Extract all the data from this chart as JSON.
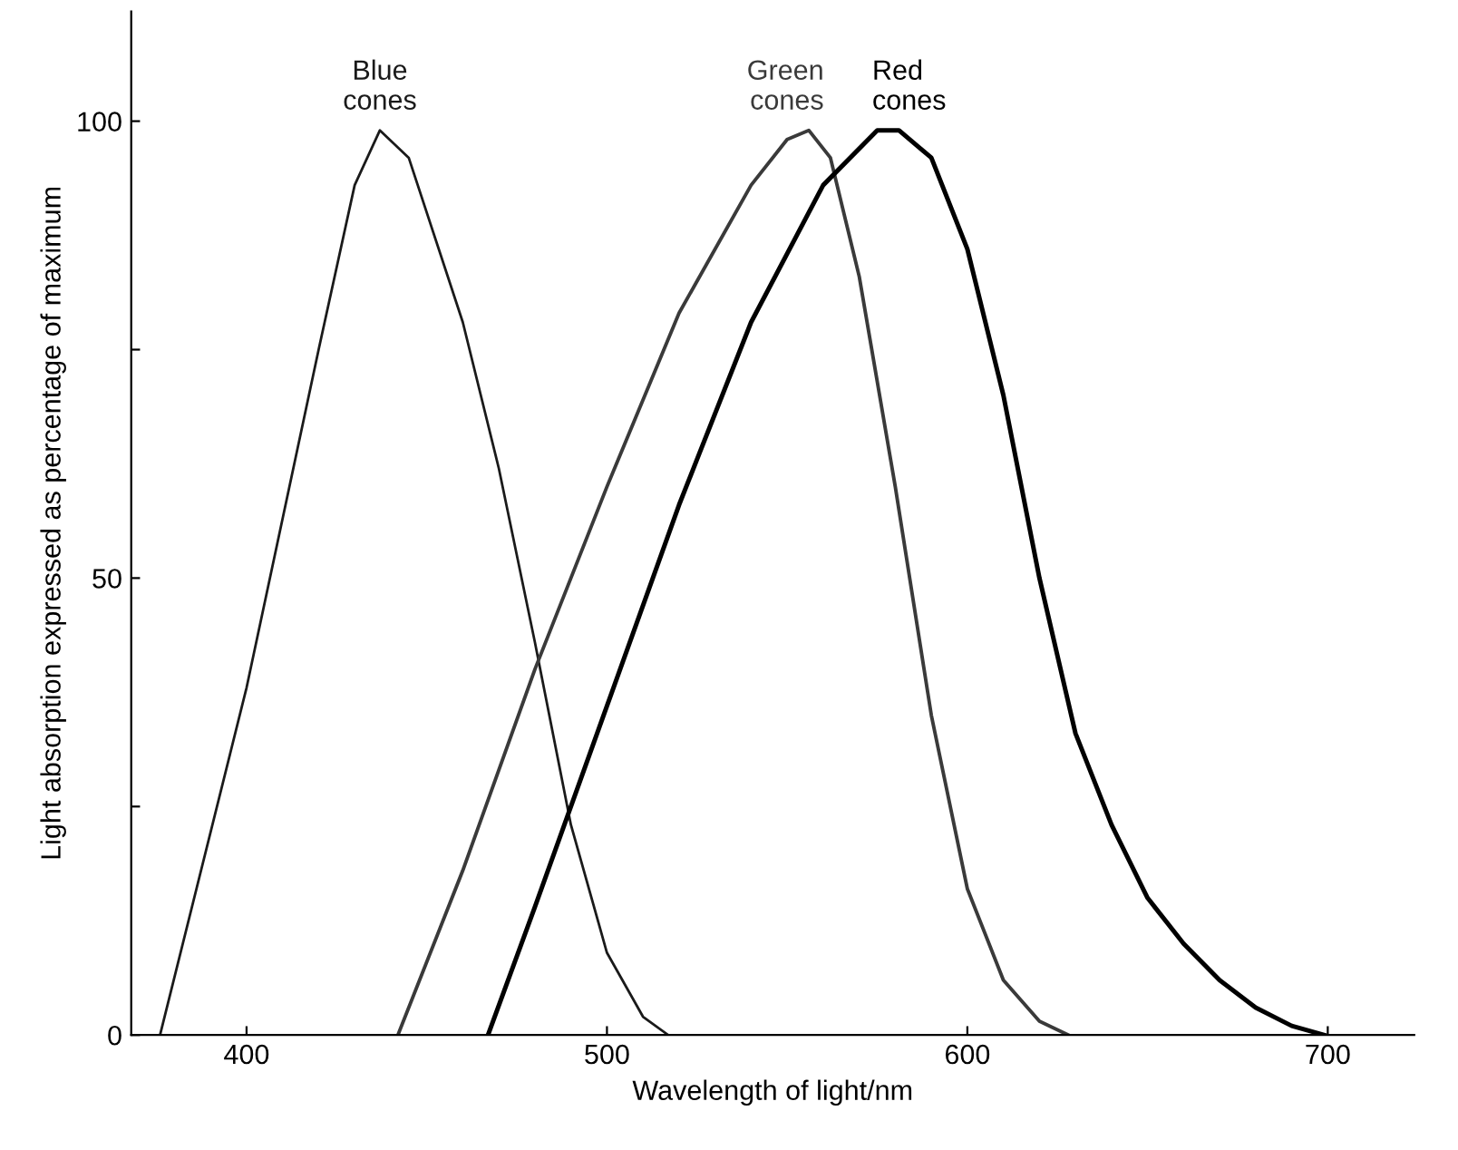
{
  "chart_data": {
    "type": "line",
    "xlabel": "Wavelength of light/nm",
    "ylabel": "Light absorption expressed as percentage of maximum",
    "xlim": [
      368,
      724
    ],
    "ylim": [
      0,
      112
    ],
    "xticks": [
      400,
      500,
      600,
      700
    ],
    "yticks": [
      0,
      {
        "value": 25,
        "label": null
      },
      50,
      {
        "value": 75,
        "label": null
      },
      100
    ],
    "grid": false,
    "legend": false,
    "marker": "none",
    "line_style": "solid",
    "series": [
      {
        "name": "Blue\ncones",
        "color": "#1a1a1a",
        "x": [
          376,
          400,
          420,
          430,
          437,
          445,
          460,
          470,
          480,
          490,
          500,
          510,
          517
        ],
        "values": [
          0,
          38,
          75,
          93,
          99,
          96,
          78,
          62,
          43,
          23,
          9,
          2,
          0
        ]
      },
      {
        "name": "Green\ncones",
        "color": "#3a3a3a",
        "x": [
          442,
          460,
          480,
          500,
          520,
          540,
          550,
          556,
          562,
          570,
          580,
          590,
          600,
          610,
          620,
          628
        ],
        "values": [
          0,
          18,
          40,
          60,
          79,
          93,
          98,
          99,
          96,
          83,
          60,
          35,
          16,
          6,
          1.5,
          0
        ]
      },
      {
        "name": "Red\ncones",
        "color": "#000000",
        "x": [
          467,
          480,
          500,
          520,
          540,
          560,
          575,
          581,
          590,
          600,
          610,
          620,
          630,
          640,
          650,
          660,
          670,
          680,
          690,
          699
        ],
        "values": [
          0,
          14,
          36,
          58,
          78,
          93,
          99,
          99,
          96,
          86,
          70,
          50,
          33,
          23,
          15,
          10,
          6,
          3,
          1,
          0
        ]
      }
    ]
  }
}
